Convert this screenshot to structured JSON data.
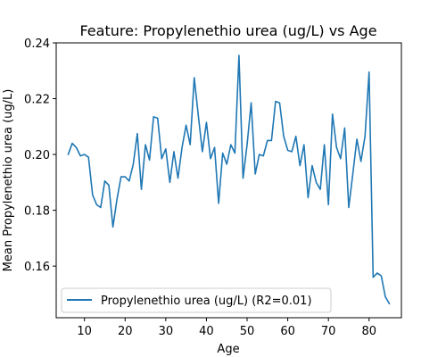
{
  "chart_data": {
    "type": "line",
    "title": "Feature: Propylenethio urea (ug/L) vs Age",
    "xlabel": "Age",
    "ylabel": "Mean Propylenethio urea (ug/L)",
    "xlim": [
      3.05,
      87.95
    ],
    "ylim": [
      0.1415,
      0.24
    ],
    "xticks": [
      10,
      20,
      30,
      40,
      50,
      60,
      70,
      80
    ],
    "yticks": [
      0.16,
      0.18,
      0.2,
      0.22,
      0.24
    ],
    "ytick_labels": [
      "0.16",
      "0.18",
      "0.20",
      "0.22",
      "0.24"
    ],
    "grid": false,
    "legend_position": "lower-left",
    "colors": {
      "series": "#1f77b4"
    },
    "series": [
      {
        "name": "Propylenethio urea (ug/L) (R2=0.01)",
        "x": [
          6,
          7,
          8,
          9,
          10,
          11,
          12,
          13,
          14,
          15,
          16,
          17,
          18,
          19,
          20,
          21,
          22,
          23,
          24,
          25,
          26,
          27,
          28,
          29,
          30,
          31,
          32,
          33,
          34,
          35,
          36,
          37,
          38,
          39,
          40,
          41,
          42,
          43,
          44,
          45,
          46,
          47,
          48,
          49,
          50,
          51,
          52,
          53,
          54,
          55,
          56,
          57,
          58,
          59,
          60,
          61,
          62,
          63,
          64,
          65,
          66,
          67,
          68,
          69,
          70,
          71,
          72,
          73,
          74,
          75,
          76,
          77,
          78,
          79,
          80,
          81,
          82,
          83,
          84,
          85
        ],
        "y": [
          0.2,
          0.204,
          0.2025,
          0.1995,
          0.2,
          0.199,
          0.1855,
          0.182,
          0.181,
          0.1905,
          0.189,
          0.174,
          0.184,
          0.192,
          0.192,
          0.1905,
          0.1965,
          0.2075,
          0.1875,
          0.2035,
          0.198,
          0.2135,
          0.213,
          0.1985,
          0.202,
          0.19,
          0.201,
          0.1915,
          0.2025,
          0.2105,
          0.2035,
          0.2275,
          0.214,
          0.201,
          0.2115,
          0.1985,
          0.2025,
          0.1825,
          0.2005,
          0.1965,
          0.2035,
          0.2005,
          0.2355,
          0.1915,
          0.2035,
          0.2185,
          0.193,
          0.2,
          0.1995,
          0.205,
          0.205,
          0.219,
          0.2185,
          0.2065,
          0.2015,
          0.201,
          0.2065,
          0.196,
          0.2035,
          0.1845,
          0.196,
          0.19,
          0.1875,
          0.2035,
          0.182,
          0.2145,
          0.2025,
          0.1985,
          0.2095,
          0.181,
          0.193,
          0.2055,
          0.1975,
          0.2065,
          0.2295,
          0.156,
          0.1575,
          0.1565,
          0.149,
          0.1465
        ]
      }
    ]
  }
}
